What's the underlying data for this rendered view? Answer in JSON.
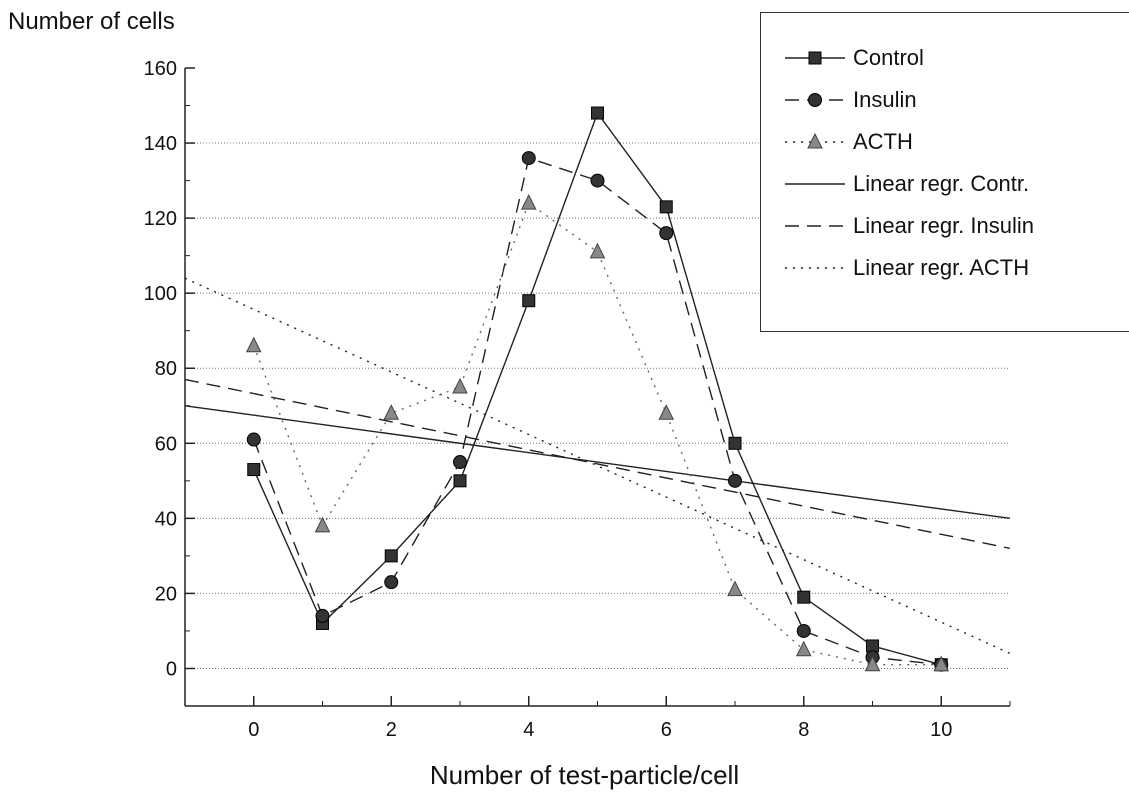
{
  "chart_data": {
    "type": "line",
    "title": "",
    "ylabel": "Number of cells",
    "xlabel": "Number of test-particle/cell",
    "xlim": [
      -1,
      11
    ],
    "ylim": [
      -10,
      160
    ],
    "x_ticks": [
      0,
      2,
      4,
      6,
      8,
      10
    ],
    "y_ticks": [
      0,
      20,
      40,
      60,
      80,
      100,
      120,
      140,
      160
    ],
    "grid": "horizontal dotted",
    "legend_position": "top-right",
    "x": [
      0,
      1,
      2,
      3,
      4,
      5,
      6,
      7,
      8,
      9,
      10
    ],
    "series": [
      {
        "name": "Control",
        "values": [
          53,
          12,
          30,
          50,
          98,
          148,
          123,
          60,
          19,
          6,
          1
        ],
        "color": "#222222",
        "style": "solid",
        "marker": "square"
      },
      {
        "name": "Insulin",
        "values": [
          61,
          14,
          23,
          55,
          136,
          130,
          116,
          50,
          10,
          3,
          1
        ],
        "color": "#222222",
        "style": "dashed",
        "marker": "circle"
      },
      {
        "name": "ACTH",
        "values": [
          86,
          38,
          68,
          75,
          124,
          111,
          68,
          21,
          5,
          1,
          1
        ],
        "color": "#666666",
        "style": "dotted",
        "marker": "triangle"
      }
    ],
    "regression_lines": [
      {
        "name": "Linear regr. Contr.",
        "x": [
          -1,
          11
        ],
        "y": [
          70,
          40
        ],
        "style": "solid"
      },
      {
        "name": "Linear regr. Insulin",
        "x": [
          -1,
          11
        ],
        "y": [
          77,
          32
        ],
        "style": "dashed"
      },
      {
        "name": "Linear regr. ACTH",
        "x": [
          -1,
          11
        ],
        "y": [
          104,
          4
        ],
        "style": "dotted"
      }
    ]
  },
  "legend": {
    "items": [
      {
        "label": "Control",
        "style": "solid",
        "marker": "square"
      },
      {
        "label": "Insulin",
        "style": "dashed",
        "marker": "circle"
      },
      {
        "label": "ACTH",
        "style": "dotted",
        "marker": "triangle"
      },
      {
        "label": "Linear regr. Contr.",
        "style": "solid",
        "marker": "none"
      },
      {
        "label": "Linear regr. Insulin",
        "style": "dashed",
        "marker": "none"
      },
      {
        "label": "Linear regr. ACTH",
        "style": "dotted",
        "marker": "none"
      }
    ]
  }
}
